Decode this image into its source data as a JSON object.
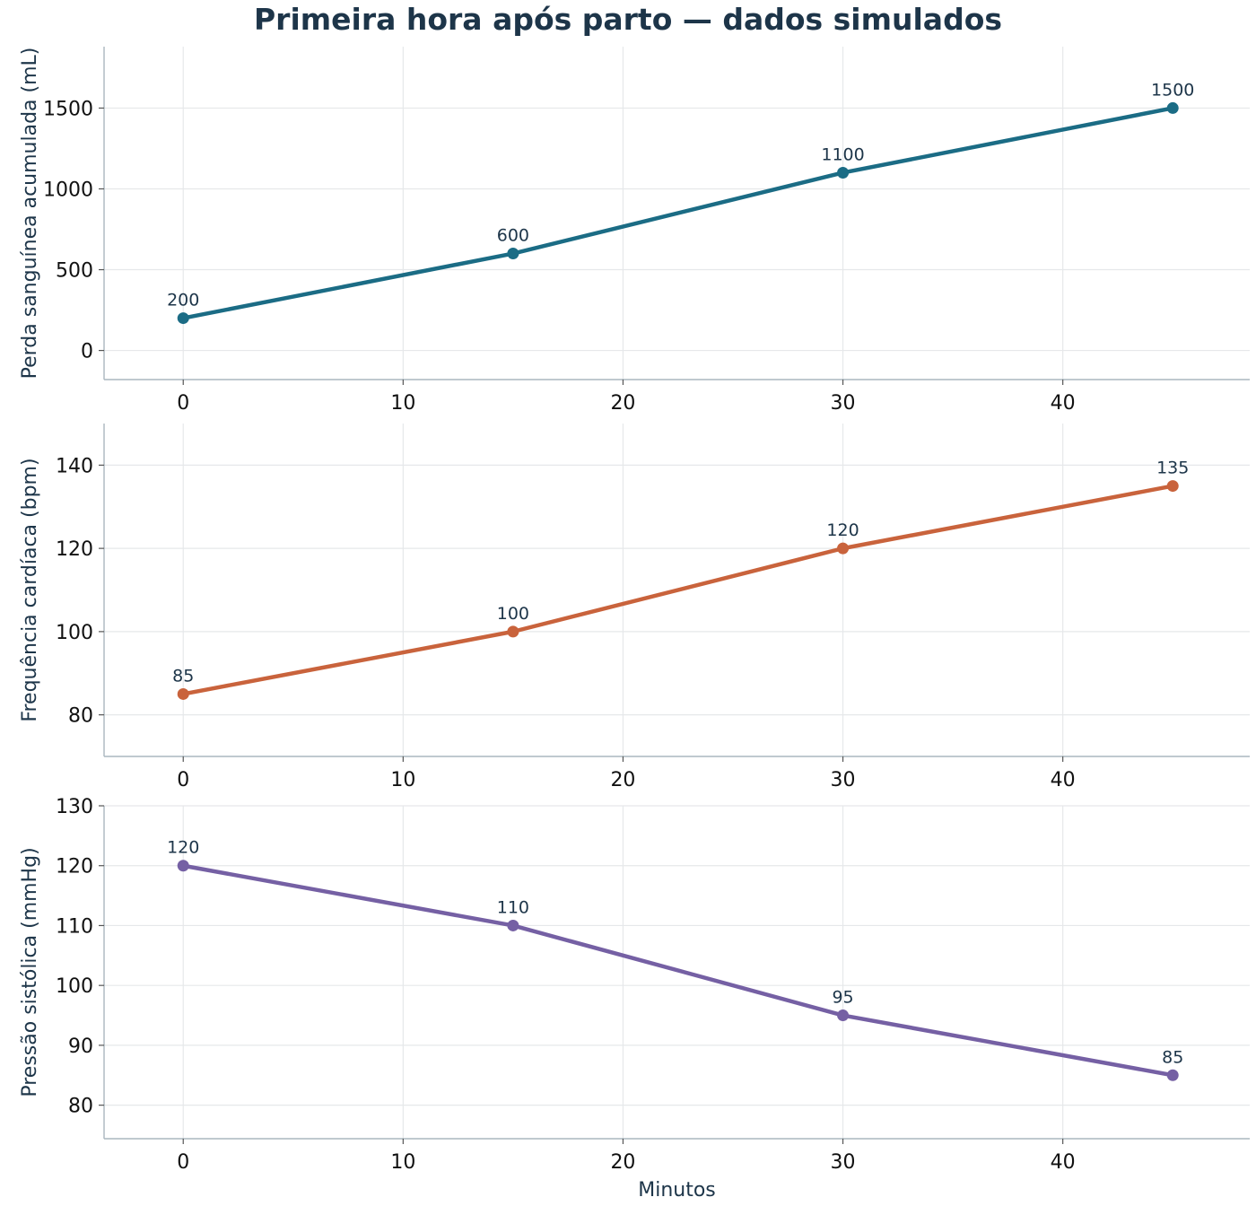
{
  "title": "Primeira hora após parto — dados simulados",
  "chart_data": [
    {
      "type": "line",
      "x": [
        0,
        15,
        30,
        45
      ],
      "values": [
        200,
        600,
        1100,
        1500
      ],
      "data_labels": [
        "200",
        "600",
        "1100",
        "1500"
      ],
      "ylabel": "Perda sanguínea acumulada (mL)",
      "xlabel": "",
      "xlim": [
        -3.6,
        48.5
      ],
      "ylim": [
        -180,
        1880
      ],
      "x_ticks": [
        0,
        10,
        20,
        30,
        40
      ],
      "x_tick_labels": [
        "0",
        "10",
        "20",
        "30",
        "40"
      ],
      "y_ticks": [
        0,
        500,
        1000,
        1500
      ],
      "y_tick_labels": [
        "0",
        "500",
        "1000",
        "1500"
      ],
      "color": "#1b6c85",
      "grid": true
    },
    {
      "type": "line",
      "x": [
        0,
        15,
        30,
        45
      ],
      "values": [
        85,
        100,
        120,
        135
      ],
      "data_labels": [
        "85",
        "100",
        "120",
        "135"
      ],
      "ylabel": "Frequência cardíaca (bpm)",
      "xlabel": "",
      "xlim": [
        -3.6,
        48.5
      ],
      "ylim": [
        70,
        150
      ],
      "x_ticks": [
        0,
        10,
        20,
        30,
        40
      ],
      "x_tick_labels": [
        "0",
        "10",
        "20",
        "30",
        "40"
      ],
      "y_ticks": [
        80,
        100,
        120,
        140
      ],
      "y_tick_labels": [
        "80",
        "100",
        "120",
        "140"
      ],
      "color": "#c9633c",
      "grid": true
    },
    {
      "type": "line",
      "x": [
        0,
        15,
        30,
        45
      ],
      "values": [
        120,
        110,
        95,
        85
      ],
      "data_labels": [
        "120",
        "110",
        "95",
        "85"
      ],
      "ylabel": "Pressão sistólica (mmHg)",
      "xlabel": "Minutos",
      "xlim": [
        -3.6,
        48.5
      ],
      "ylim": [
        74.4,
        130
      ],
      "x_ticks": [
        0,
        10,
        20,
        30,
        40
      ],
      "x_tick_labels": [
        "0",
        "10",
        "20",
        "30",
        "40"
      ],
      "y_ticks": [
        80,
        90,
        100,
        110,
        120,
        130
      ],
      "y_tick_labels": [
        "80",
        "90",
        "100",
        "110",
        "120",
        "130"
      ],
      "color": "#7560a4",
      "grid": true
    }
  ]
}
